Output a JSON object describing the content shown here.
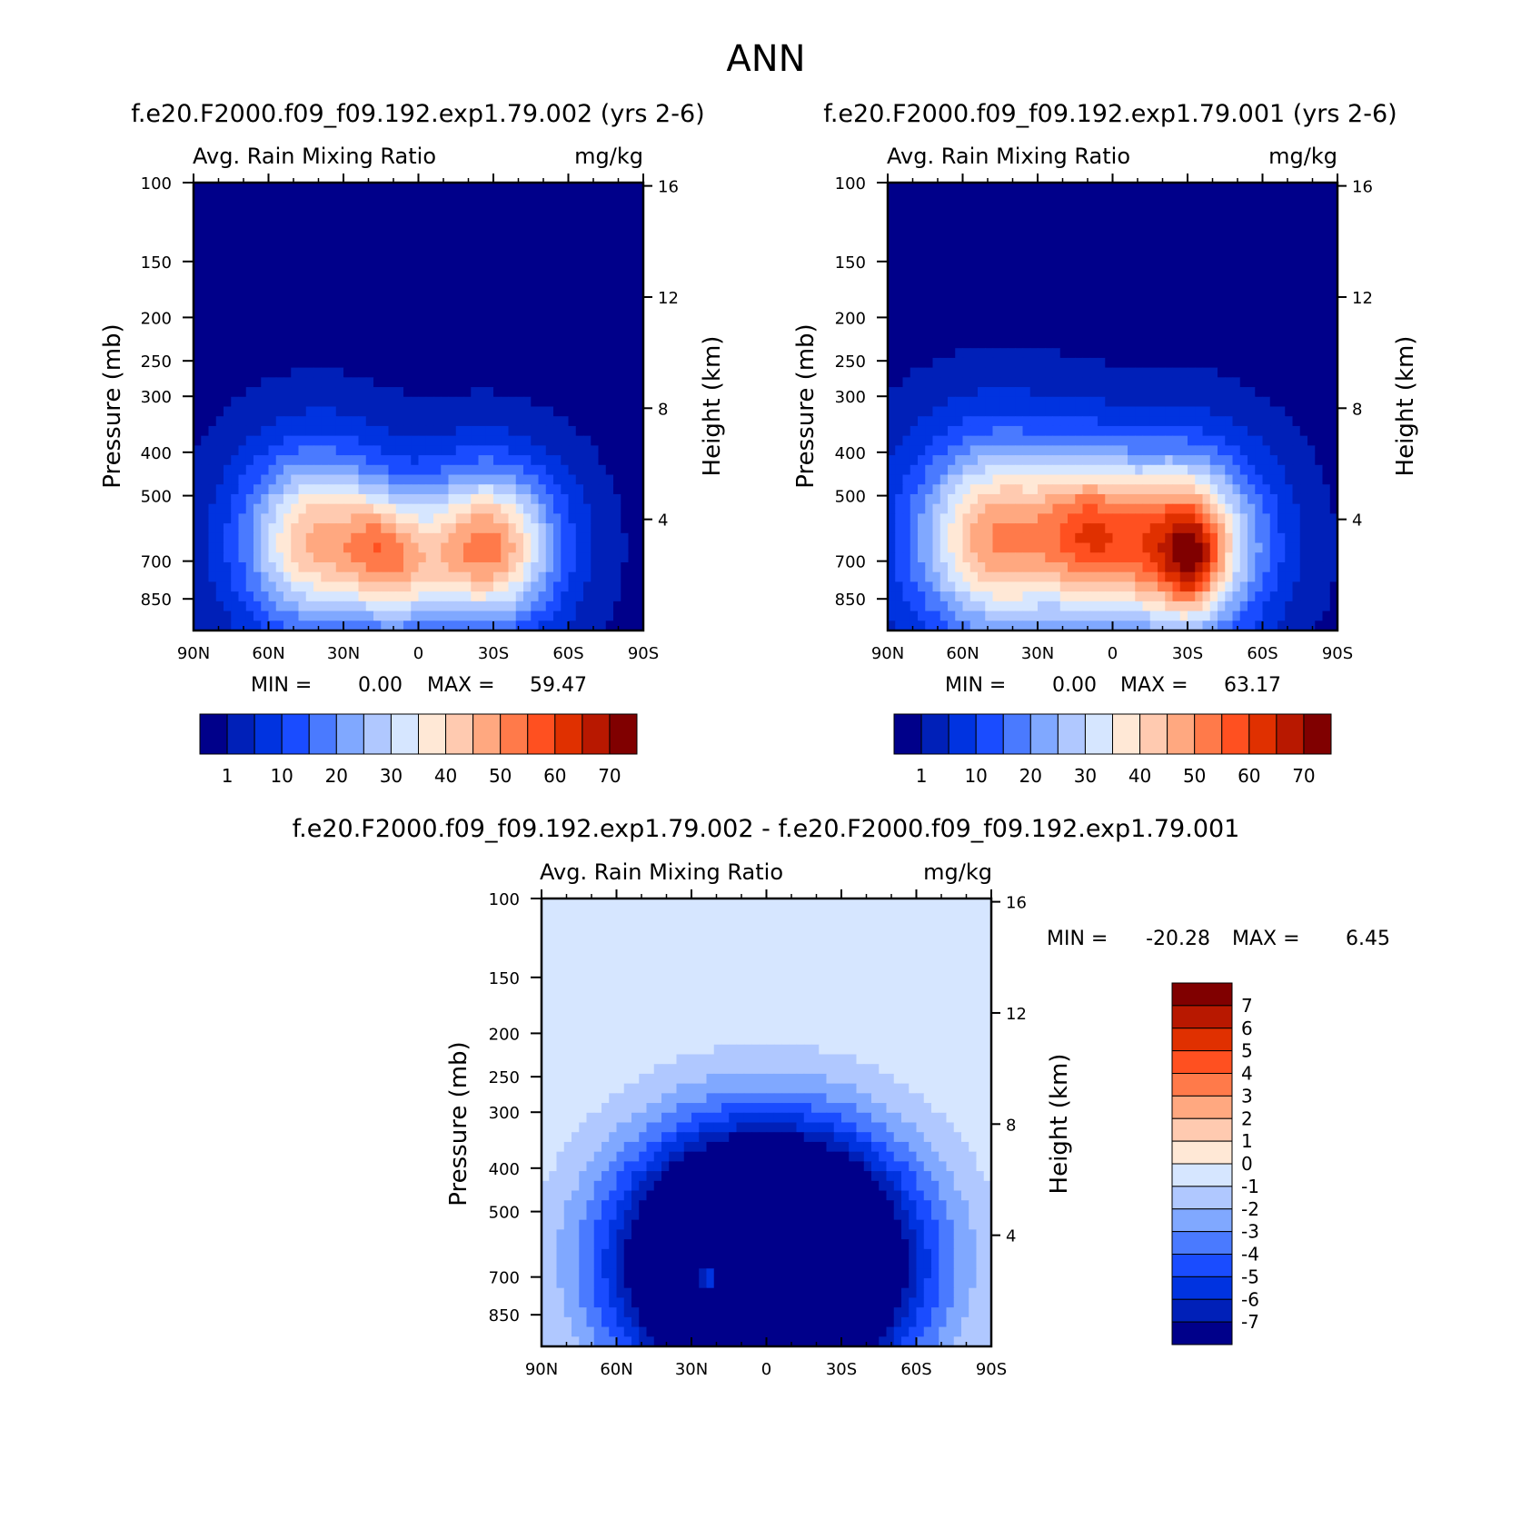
{
  "title": "ANN",
  "chart_data": [
    {
      "type": "heatmap",
      "case_title": "f.e20.F2000.f09_f09.192.exp1.79.002 (yrs 2-6)",
      "left_string": "Avg. Rain Mixing Ratio",
      "right_string": "mg/kg",
      "ylabel": "Pressure (mb)",
      "ylabel_right": "Height (km)",
      "x_ticks": [
        "90N",
        "60N",
        "30N",
        "0",
        "30S",
        "60S",
        "90S"
      ],
      "y_ticks": [
        "100",
        "150",
        "200",
        "250",
        "300",
        "400",
        "500",
        "700",
        "850"
      ],
      "y_right_ticks": [
        "16",
        "12",
        "8",
        "4"
      ],
      "xlim": [
        90,
        -90
      ],
      "ylim": [
        100,
        1000
      ],
      "y_scale": "log",
      "stats": {
        "min_label": "MIN =",
        "min": "0.00",
        "max_label": "MAX =",
        "max": "59.47"
      },
      "colorbar": {
        "orientation": "horizontal",
        "colors": [
          "#00008a",
          "#0020b8",
          "#0033e0",
          "#1a4cff",
          "#4a7aff",
          "#80a8ff",
          "#b0c8ff",
          "#d6e6ff",
          "#ffe8d6",
          "#ffcab0",
          "#ffa880",
          "#ff7a4a",
          "#ff5020",
          "#e03000",
          "#b81800",
          "#800000"
        ],
        "labels": [
          "1",
          "10",
          "20",
          "30",
          "40",
          "50",
          "60",
          "70"
        ]
      },
      "fields": [
        {
          "lat": 40,
          "p": 630,
          "amp": 46,
          "slat": 30,
          "sp": 0.45
        },
        {
          "lat": -27,
          "p": 650,
          "amp": 52,
          "slat": 28,
          "sp": 0.4
        },
        {
          "lat": 8,
          "p": 760,
          "amp": 20,
          "slat": 18,
          "sp": 0.3
        },
        {
          "lat": 15,
          "p": 620,
          "amp": 14,
          "slat": 14,
          "sp": 0.25
        }
      ]
    },
    {
      "type": "heatmap",
      "case_title": "f.e20.F2000.f09_f09.192.exp1.79.001 (yrs 2-6)",
      "left_string": "Avg. Rain Mixing Ratio",
      "right_string": "mg/kg",
      "ylabel": "Pressure (mb)",
      "ylabel_right": "Height (km)",
      "x_ticks": [
        "90N",
        "60N",
        "30N",
        "0",
        "30S",
        "60S",
        "90S"
      ],
      "y_ticks": [
        "100",
        "150",
        "200",
        "250",
        "300",
        "400",
        "500",
        "700",
        "850"
      ],
      "y_right_ticks": [
        "16",
        "12",
        "8",
        "4"
      ],
      "xlim": [
        90,
        -90
      ],
      "ylim": [
        100,
        1000
      ],
      "y_scale": "log",
      "stats": {
        "min_label": "MIN =",
        "min": "0.00",
        "max_label": "MAX =",
        "max": "63.17"
      },
      "colorbar": {
        "orientation": "horizontal",
        "colors": [
          "#00008a",
          "#0020b8",
          "#0033e0",
          "#1a4cff",
          "#4a7aff",
          "#80a8ff",
          "#b0c8ff",
          "#d6e6ff",
          "#ffe8d6",
          "#ffcab0",
          "#ffa880",
          "#ff7a4a",
          "#ff5020",
          "#e03000",
          "#b81800",
          "#800000"
        ],
        "labels": [
          "1",
          "10",
          "20",
          "30",
          "40",
          "50",
          "60",
          "70"
        ]
      },
      "fields": [
        {
          "lat": 45,
          "p": 620,
          "amp": 50,
          "slat": 34,
          "sp": 0.5
        },
        {
          "lat": -25,
          "p": 640,
          "amp": 60,
          "slat": 32,
          "sp": 0.45
        },
        {
          "lat": 10,
          "p": 600,
          "amp": 26,
          "slat": 18,
          "sp": 0.4
        },
        {
          "lat": -32,
          "p": 700,
          "amp": 20,
          "slat": 10,
          "sp": 0.25
        }
      ]
    },
    {
      "type": "heatmap",
      "case_title": "f.e20.F2000.f09_f09.192.exp1.79.002 - f.e20.F2000.f09_f09.192.exp1.79.001",
      "left_string": "Avg. Rain Mixing Ratio",
      "right_string": "mg/kg",
      "ylabel": "Pressure (mb)",
      "ylabel_right": "Height (km)",
      "x_ticks": [
        "90N",
        "60N",
        "30N",
        "0",
        "30S",
        "60S",
        "90S"
      ],
      "y_ticks": [
        "100",
        "150",
        "200",
        "250",
        "300",
        "400",
        "500",
        "700",
        "850"
      ],
      "y_right_ticks": [
        "16",
        "12",
        "8",
        "4"
      ],
      "xlim": [
        90,
        -90
      ],
      "ylim": [
        100,
        1000
      ],
      "y_scale": "log",
      "stats": {
        "min_label": "MIN =",
        "min": "-20.28",
        "max_label": "MAX =",
        "max": "6.45"
      },
      "colorbar": {
        "orientation": "vertical",
        "colors": [
          "#800000",
          "#b81800",
          "#e03000",
          "#ff5020",
          "#ff7a4a",
          "#ffa880",
          "#ffcab0",
          "#ffe8d6",
          "#d6e6ff",
          "#b0c8ff",
          "#80a8ff",
          "#4a7aff",
          "#1a4cff",
          "#0033e0",
          "#0020b8",
          "#00008a"
        ],
        "labels": [
          "7",
          "6",
          "5",
          "4",
          "3",
          "2",
          "1",
          "0",
          "-1",
          "-2",
          "-3",
          "-4",
          "-5",
          "-6",
          "-7"
        ]
      },
      "fields": [
        {
          "lat": 0,
          "p": 650,
          "amp": -20,
          "slat": 55,
          "sp": 0.65
        },
        {
          "lat": 22,
          "p": 700,
          "amp": 12,
          "slat": 7,
          "sp": 0.12
        },
        {
          "lat": -22,
          "p": 700,
          "amp": 9,
          "slat": 5,
          "sp": 0.1
        }
      ]
    }
  ]
}
